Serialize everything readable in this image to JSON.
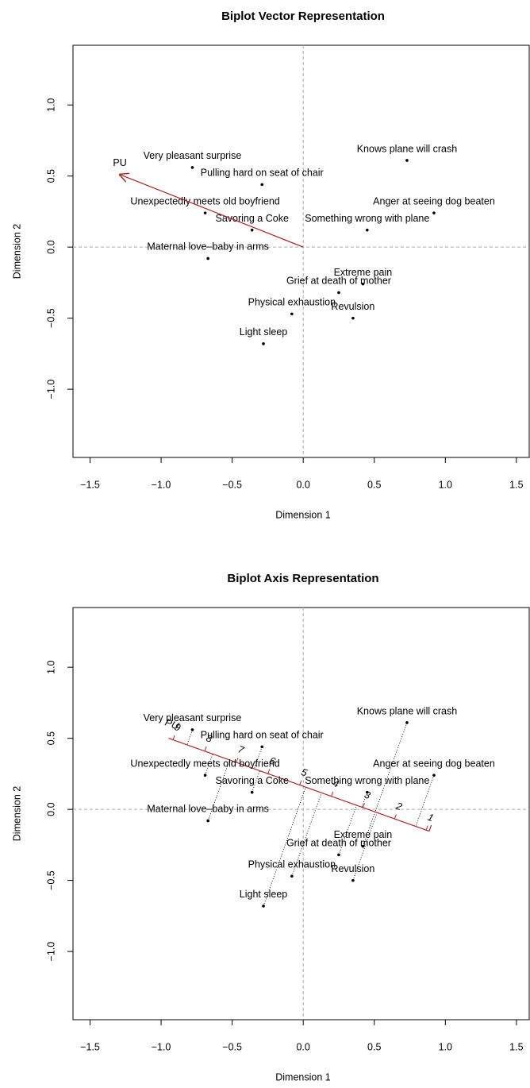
{
  "chart_data": [
    {
      "type": "biplot-vector",
      "title": "Biplot Vector Representation",
      "xlabel": "Dimension 1",
      "ylabel": "Dimension 2",
      "labels": [
        "Very pleasant surprise",
        "Pulling hard on seat of chair",
        "Knows plane will crash",
        "Anger at seeing dog beaten",
        "Unexpectedly meets old boyfriend",
        "Savoring a Coke",
        "Something wrong with plane",
        "Maternal love–baby in arms",
        "Extreme pain",
        "Grief at death of mother",
        "Physical exhaustion",
        "Revulsion",
        "Light sleep"
      ],
      "x": [
        -0.78,
        -0.29,
        0.73,
        0.92,
        -0.69,
        -0.36,
        0.45,
        -0.67,
        0.42,
        0.25,
        -0.08,
        0.35,
        -0.28
      ],
      "y": [
        0.56,
        0.44,
        0.61,
        0.24,
        0.24,
        0.12,
        0.12,
        -0.08,
        -0.26,
        -0.32,
        -0.47,
        -0.5,
        -0.68
      ],
      "vector": {
        "name": "PU",
        "x": -1.29,
        "y": 0.51,
        "color": "#b22222"
      },
      "xlim": [
        -1.62,
        1.59
      ],
      "ylim": [
        -1.48,
        1.42
      ],
      "xticks": [
        {
          "value": -1.5,
          "label": "−1.5"
        },
        {
          "value": -1,
          "label": "−1.0"
        },
        {
          "value": -0.5,
          "label": "−0.5"
        },
        {
          "value": 0,
          "label": "0.0"
        },
        {
          "value": 0.5,
          "label": "0.5"
        },
        {
          "value": 1,
          "label": "1.0"
        },
        {
          "value": 1.5,
          "label": "1.5"
        }
      ],
      "yticks": [
        {
          "value": -1,
          "label": "−1.0"
        },
        {
          "value": -0.5,
          "label": "−0.5"
        },
        {
          "value": 0,
          "label": "0.0"
        },
        {
          "value": 0.5,
          "label": "0.5"
        },
        {
          "value": 1,
          "label": "1.0"
        }
      ],
      "origin_lines": true
    },
    {
      "type": "biplot-axis",
      "title": "Biplot Axis Representation",
      "xlabel": "Dimension 1",
      "ylabel": "Dimension 2",
      "labels": [
        "Very pleasant surprise",
        "Pulling hard on seat of chair",
        "Knows plane will crash",
        "Anger at seeing dog beaten",
        "Unexpectedly meets old boyfriend",
        "Savoring a Coke",
        "Something wrong with plane",
        "Maternal love–baby in arms",
        "Extreme pain",
        "Grief at death of mother",
        "Physical exhaustion",
        "Revulsion",
        "Light sleep"
      ],
      "x": [
        -0.78,
        -0.29,
        0.73,
        0.92,
        -0.69,
        -0.36,
        0.45,
        -0.67,
        0.42,
        0.25,
        -0.08,
        0.35,
        -0.28
      ],
      "y": [
        0.56,
        0.44,
        0.61,
        0.24,
        0.24,
        0.12,
        0.12,
        -0.08,
        -0.26,
        -0.32,
        -0.47,
        -0.5,
        -0.68
      ],
      "calibrated_axis": {
        "name": "PU",
        "color": "#b22222",
        "ticks": [
          1,
          2,
          3,
          4,
          5,
          6,
          7,
          8,
          9
        ],
        "tick_x": [
          0.865,
          0.643,
          0.42,
          0.198,
          -0.025,
          -0.248,
          -0.47,
          -0.693,
          -0.916
        ],
        "tick_y": [
          -0.146,
          -0.067,
          0.012,
          0.092,
          0.171,
          0.251,
          0.331,
          0.41,
          0.489
        ]
      },
      "xlim": [
        -1.62,
        1.59
      ],
      "ylim": [
        -1.48,
        1.42
      ],
      "xticks": [
        {
          "value": -1.5,
          "label": "−1.5"
        },
        {
          "value": -1,
          "label": "−1.0"
        },
        {
          "value": -0.5,
          "label": "−0.5"
        },
        {
          "value": 0,
          "label": "0.0"
        },
        {
          "value": 0.5,
          "label": "0.5"
        },
        {
          "value": 1,
          "label": "1.0"
        },
        {
          "value": 1.5,
          "label": "1.5"
        }
      ],
      "yticks": [
        {
          "value": -1,
          "label": "−1.0"
        },
        {
          "value": -0.5,
          "label": "−0.5"
        },
        {
          "value": 0,
          "label": "0.0"
        },
        {
          "value": 0.5,
          "label": "0.5"
        },
        {
          "value": 1,
          "label": "1.0"
        }
      ],
      "origin_lines": true
    }
  ]
}
